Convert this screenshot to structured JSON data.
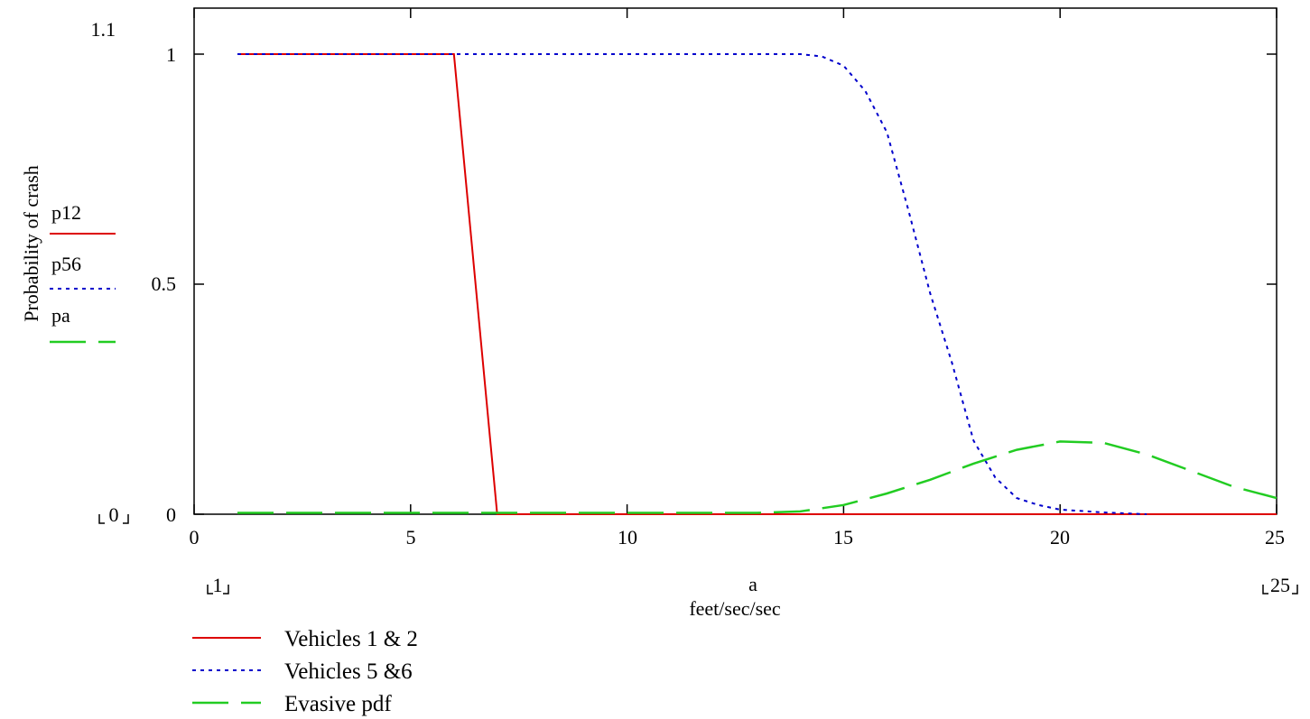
{
  "chart_data": {
    "type": "line",
    "title": "",
    "xlabel": "a",
    "xunit": "feet/sec/sec",
    "ylabel": "Probability of crash",
    "xlim": [
      0,
      25
    ],
    "ylim": [
      0,
      1.1
    ],
    "x_ticks": [
      0,
      5,
      10,
      15,
      20,
      25
    ],
    "y_ticks": [
      "0",
      "0.5",
      "1"
    ],
    "y_top_label": "1.1",
    "y_bottom_marker": "0",
    "x_left_marker": "1",
    "x_right_marker": "25",
    "grid": false,
    "legend_left": [
      {
        "label": "p12",
        "color": "#dd0000",
        "dash": "solid"
      },
      {
        "label": "p56",
        "color": "#0000cc",
        "dash": "dotted"
      },
      {
        "label": "pa",
        "color": "#22cc22",
        "dash": "dashed"
      }
    ],
    "legend_bottom": [
      {
        "label": "Vehicles 1 & 2",
        "color": "#dd0000",
        "dash": "solid"
      },
      {
        "label": "Vehicles 5 &6",
        "color": "#0000cc",
        "dash": "dotted"
      },
      {
        "label": "Evasive pdf",
        "color": "#22cc22",
        "dash": "dashed"
      }
    ],
    "series": [
      {
        "name": "p12",
        "color": "#dd0000",
        "dash": "solid",
        "x": [
          1,
          2,
          3,
          4,
          5,
          6,
          7,
          8,
          9,
          10,
          11,
          12,
          13,
          14,
          15,
          16,
          17,
          18,
          19,
          20,
          21,
          22,
          23,
          24,
          25
        ],
        "y": [
          1,
          1,
          1,
          1,
          1,
          1,
          0,
          0,
          0,
          0,
          0,
          0,
          0,
          0,
          0,
          0,
          0,
          0,
          0,
          0,
          0,
          0,
          0,
          0,
          0
        ]
      },
      {
        "name": "p56",
        "color": "#0000cc",
        "dash": "dotted",
        "x": [
          1,
          2,
          3,
          4,
          5,
          6,
          7,
          8,
          9,
          10,
          11,
          12,
          13,
          14,
          14.5,
          15,
          15.5,
          16,
          16.5,
          17,
          17.5,
          18,
          18.5,
          19,
          19.5,
          20,
          21,
          22
        ],
        "y": [
          1,
          1,
          1,
          1,
          1,
          1,
          1,
          1,
          1,
          1,
          1,
          1,
          1,
          1,
          0.995,
          0.975,
          0.92,
          0.83,
          0.66,
          0.48,
          0.33,
          0.16,
          0.08,
          0.035,
          0.02,
          0.01,
          0.004,
          0
        ]
      },
      {
        "name": "pa",
        "color": "#22cc22",
        "dash": "dashed",
        "x": [
          1,
          2,
          3,
          4,
          5,
          6,
          7,
          8,
          9,
          10,
          11,
          12,
          13,
          14,
          15,
          16,
          17,
          18,
          19,
          20,
          21,
          22,
          23,
          24,
          25
        ],
        "y": [
          0.003,
          0.003,
          0.003,
          0.003,
          0.003,
          0.003,
          0.003,
          0.003,
          0.003,
          0.003,
          0.003,
          0.003,
          0.003,
          0.006,
          0.02,
          0.045,
          0.075,
          0.11,
          0.14,
          0.158,
          0.155,
          0.13,
          0.095,
          0.06,
          0.035
        ]
      }
    ]
  }
}
